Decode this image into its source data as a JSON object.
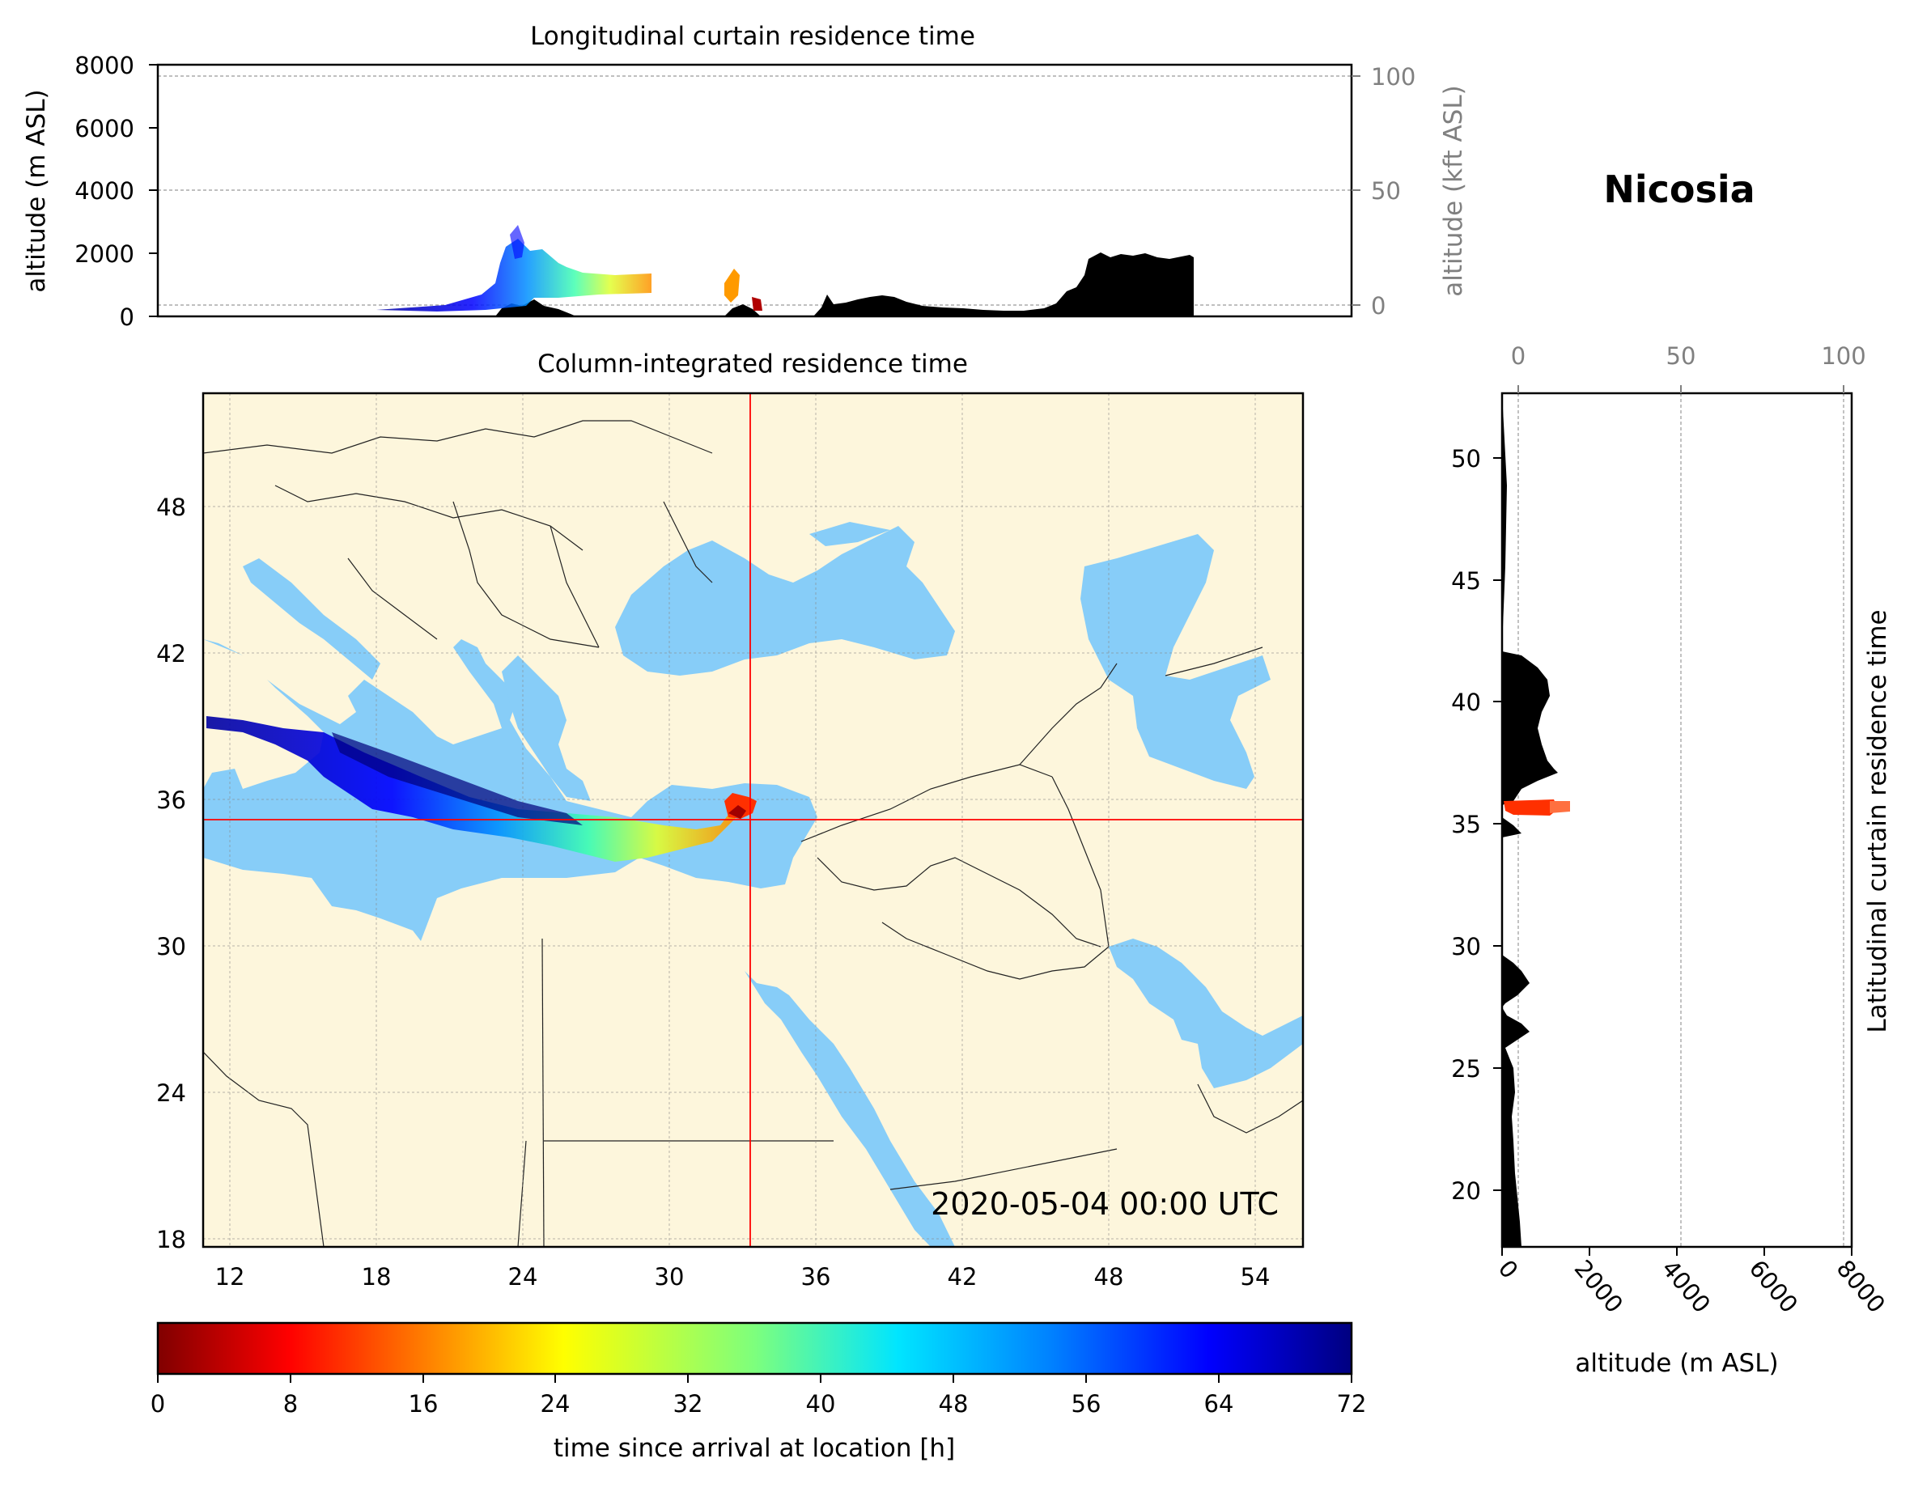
{
  "location_name": "Nicosia",
  "top_panel": {
    "title": "Longitudinal curtain residence time",
    "ylabel_left": "altitude (m ASL)",
    "ylabel_right": "altitude (kft ASL)",
    "yticks_left": [
      "0",
      "2000",
      "4000",
      "6000",
      "8000"
    ],
    "yticks_right": [
      "0",
      "50",
      "100"
    ]
  },
  "map_panel": {
    "title": "Column-integrated residence time",
    "timestamp": "2020-05-04 00:00 UTC",
    "lon_ticks": [
      "12",
      "18",
      "24",
      "30",
      "36",
      "42",
      "48",
      "54"
    ],
    "lat_ticks": [
      "18",
      "24",
      "30",
      "36",
      "42",
      "48"
    ],
    "colors": {
      "land": "#fdf6dc",
      "sea": "#87cdf8",
      "crosshair": "#ff0000"
    }
  },
  "side_panel": {
    "ylabel_right": "Latitudinal curtain residence time",
    "xlabel": "altitude (m ASL)",
    "xticks_bottom": [
      "0",
      "2000",
      "4000",
      "6000",
      "8000"
    ],
    "xticks_top": [
      "0",
      "50",
      "100"
    ],
    "yticks": [
      "20",
      "25",
      "30",
      "35",
      "40",
      "45",
      "50"
    ]
  },
  "colorbar": {
    "label": "time since arrival at location [h]",
    "ticks": [
      "0",
      "8",
      "16",
      "24",
      "32",
      "40",
      "48",
      "56",
      "64",
      "72"
    ],
    "colormap": [
      "#800000",
      "#ff0000",
      "#ff8000",
      "#ffff00",
      "#80ff80",
      "#00ffff",
      "#0080ff",
      "#0000ff",
      "#000080"
    ]
  },
  "chart_data": {
    "type": "heatmap",
    "crosshair": {
      "lon": 33.4,
      "lat": 35.2
    },
    "lon_range": [
      11,
      56
    ],
    "lat_range": [
      18,
      53
    ],
    "altitude_range_m": [
      0,
      8000
    ],
    "colorbar_range_h": [
      0,
      72
    ],
    "grid": true
  }
}
